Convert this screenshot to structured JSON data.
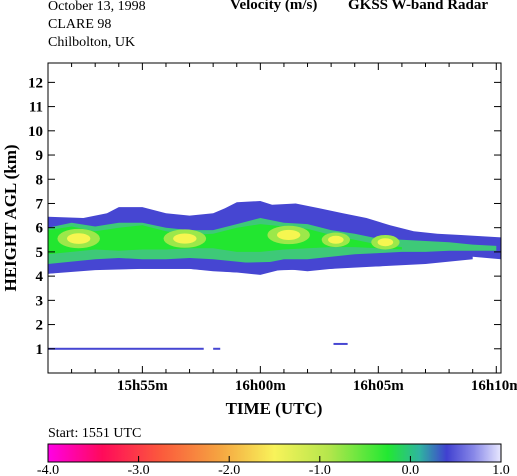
{
  "header": {
    "date": "October  13, 1998",
    "campaign": "CLARE 98",
    "site": "Chilbolton, UK",
    "quantity": "Velocity (m/s)",
    "instrument": "GKSS  W-band Radar"
  },
  "footer": {
    "start": "Start: 1551 UTC"
  },
  "colors": {
    "fill_low": "#4646d2",
    "fill_mid": "#3ec978",
    "fill_hi": "#22e630",
    "core": "#f6f650"
  },
  "chart_data": {
    "type": "heatmap",
    "xlabel": "TIME (UTC)",
    "ylabel": "HEIGHT AGL (km)",
    "x_ticks": [
      "15h55m",
      "16h00m",
      "16h05m",
      "16h10m"
    ],
    "x_tick_minutes": [
      4,
      9,
      14,
      19
    ],
    "x_range_minutes": [
      0,
      19.2
    ],
    "y_ticks": [
      1,
      2,
      3,
      4,
      5,
      6,
      7,
      8,
      9,
      10,
      11,
      12
    ],
    "ylim": [
      0,
      12.8
    ],
    "colorbar": {
      "label_values": [
        "-4.0",
        "-3.0",
        "-2.0",
        "-1.0",
        "0.0",
        "1.0"
      ],
      "range": [
        -4.0,
        1.0
      ]
    },
    "layers": [
      {
        "name": "cloud-top-outer",
        "color": "#4646d2",
        "top": [
          [
            0,
            6.45
          ],
          [
            1.5,
            6.4
          ],
          [
            2.5,
            6.6
          ],
          [
            3,
            6.85
          ],
          [
            4,
            6.85
          ],
          [
            5,
            6.6
          ],
          [
            6,
            6.5
          ],
          [
            7,
            6.6
          ],
          [
            7.5,
            6.8
          ],
          [
            8,
            7.05
          ],
          [
            9,
            7.1
          ],
          [
            9.5,
            6.95
          ],
          [
            10.5,
            7.0
          ],
          [
            11.5,
            6.8
          ],
          [
            12.5,
            6.6
          ],
          [
            13.5,
            6.4
          ],
          [
            14.5,
            6.1
          ],
          [
            15.5,
            5.85
          ],
          [
            16.5,
            5.75
          ],
          [
            17.5,
            5.7
          ],
          [
            19.2,
            5.6
          ]
        ],
        "base": [
          [
            0,
            4.1
          ],
          [
            1,
            4.2
          ],
          [
            2,
            4.3
          ],
          [
            3,
            4.35
          ],
          [
            4,
            4.3
          ],
          [
            5,
            4.3
          ],
          [
            6,
            4.3
          ],
          [
            7,
            4.2
          ],
          [
            8,
            4.15
          ],
          [
            9,
            4.05
          ],
          [
            10,
            4.3
          ],
          [
            11,
            4.2
          ],
          [
            12,
            4.3
          ],
          [
            13,
            4.4
          ],
          [
            14,
            4.4
          ],
          [
            15,
            4.5
          ],
          [
            16,
            4.6
          ],
          [
            17,
            4.7
          ],
          [
            18,
            4.8
          ],
          [
            19.2,
            4.7
          ]
        ]
      },
      {
        "name": "cloud-body",
        "color": "#3ec978",
        "top": [
          [
            0,
            6.0
          ],
          [
            1,
            6.2
          ],
          [
            2,
            6.05
          ],
          [
            3,
            6.2
          ],
          [
            4,
            6.2
          ],
          [
            5,
            6.0
          ],
          [
            6,
            5.9
          ],
          [
            7,
            5.9
          ],
          [
            8,
            6.15
          ],
          [
            9,
            6.4
          ],
          [
            10,
            6.2
          ],
          [
            11,
            6.15
          ],
          [
            12,
            5.9
          ],
          [
            13,
            5.75
          ],
          [
            14,
            5.55
          ],
          [
            15,
            5.5
          ],
          [
            16,
            5.45
          ],
          [
            17,
            5.4
          ],
          [
            18,
            5.3
          ],
          [
            19,
            5.25
          ]
        ],
        "base": [
          [
            0,
            4.5
          ],
          [
            1,
            4.6
          ],
          [
            2,
            4.7
          ],
          [
            3,
            4.75
          ],
          [
            4,
            4.7
          ],
          [
            5,
            4.7
          ],
          [
            6,
            4.75
          ],
          [
            7,
            4.7
          ],
          [
            8,
            4.6
          ],
          [
            9,
            4.5
          ],
          [
            10,
            4.7
          ],
          [
            11,
            4.7
          ],
          [
            12,
            4.8
          ],
          [
            13,
            4.9
          ],
          [
            14,
            4.95
          ],
          [
            15,
            5.0
          ],
          [
            16,
            5.0
          ],
          [
            17,
            5.05
          ],
          [
            18,
            5.05
          ],
          [
            19,
            5.05
          ]
        ]
      },
      {
        "name": "cloud-bright",
        "color": "#22e630",
        "top": [
          [
            0,
            5.9
          ],
          [
            1,
            6.05
          ],
          [
            2,
            5.85
          ],
          [
            3,
            6.0
          ],
          [
            4,
            6.1
          ],
          [
            5,
            5.85
          ],
          [
            6,
            5.7
          ],
          [
            7,
            5.75
          ],
          [
            8,
            6.0
          ],
          [
            9,
            6.15
          ],
          [
            10,
            6.05
          ],
          [
            11,
            5.95
          ],
          [
            12,
            5.7
          ],
          [
            13,
            5.5
          ],
          [
            14,
            5.3
          ],
          [
            15,
            5.2
          ]
        ],
        "base": [
          [
            0,
            4.9
          ],
          [
            1,
            5.0
          ],
          [
            2,
            5.1
          ],
          [
            3,
            5.05
          ],
          [
            4,
            5.1
          ],
          [
            5,
            5.1
          ],
          [
            6,
            5.15
          ],
          [
            7,
            5.15
          ],
          [
            8,
            5.0
          ],
          [
            9,
            5.0
          ],
          [
            10,
            5.1
          ],
          [
            11,
            5.15
          ],
          [
            12,
            5.2
          ],
          [
            13,
            5.2
          ],
          [
            14,
            5.15
          ],
          [
            15,
            5.1
          ]
        ]
      },
      {
        "name": "lower-band",
        "color": "#4646d2",
        "top": [
          [
            0,
            4.45
          ],
          [
            2,
            4.55
          ],
          [
            4,
            4.6
          ],
          [
            6,
            4.65
          ],
          [
            8,
            4.55
          ],
          [
            10,
            4.6
          ],
          [
            12,
            4.65
          ],
          [
            14,
            4.7
          ],
          [
            16,
            4.8
          ],
          [
            18,
            4.95
          ]
        ],
        "base": [
          [
            0,
            4.1
          ],
          [
            2,
            4.25
          ],
          [
            4,
            4.3
          ],
          [
            6,
            4.3
          ],
          [
            8,
            4.15
          ],
          [
            10,
            4.25
          ],
          [
            12,
            4.3
          ],
          [
            14,
            4.4
          ],
          [
            16,
            4.5
          ],
          [
            18,
            4.7
          ]
        ]
      }
    ],
    "cores": [
      {
        "x": 1.3,
        "y": 5.55,
        "rx": 0.9,
        "ry": 0.4
      },
      {
        "x": 5.8,
        "y": 5.55,
        "rx": 0.9,
        "ry": 0.38
      },
      {
        "x": 10.2,
        "y": 5.7,
        "rx": 0.9,
        "ry": 0.38
      },
      {
        "x": 12.2,
        "y": 5.5,
        "rx": 0.6,
        "ry": 0.3
      },
      {
        "x": 14.3,
        "y": 5.4,
        "rx": 0.6,
        "ry": 0.3
      }
    ],
    "low_echo": [
      {
        "x0": 0,
        "x1": 6.6,
        "y": 1.0
      },
      {
        "x0": 7.0,
        "x1": 7.3,
        "y": 1.0
      },
      {
        "x0": 12.1,
        "x1": 12.7,
        "y": 1.2
      }
    ]
  }
}
